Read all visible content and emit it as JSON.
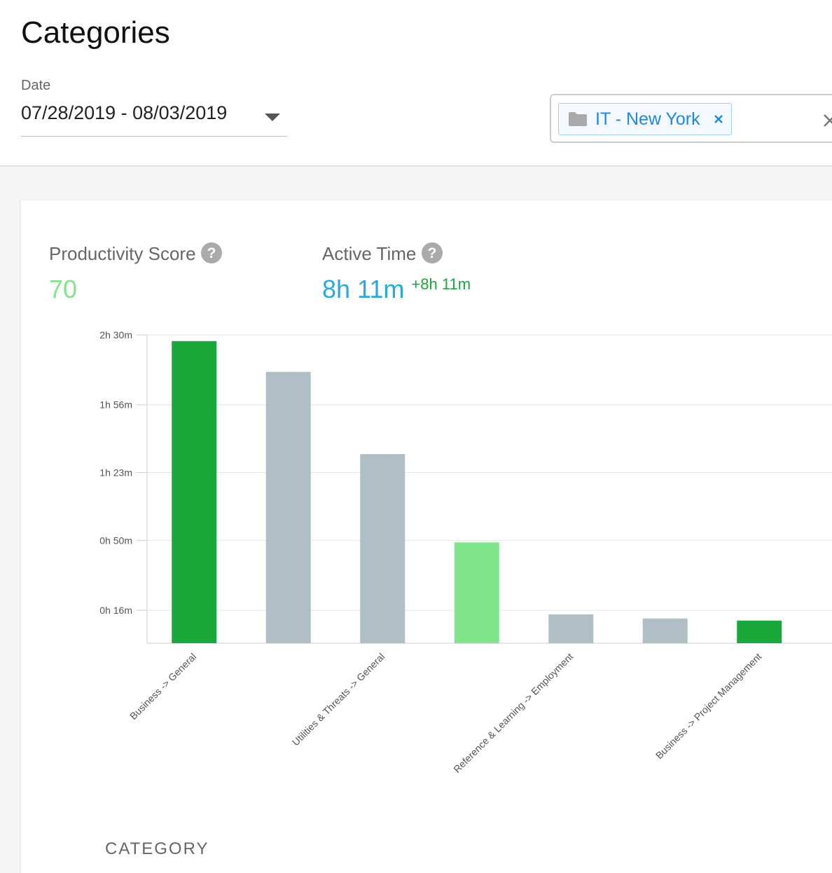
{
  "header": {
    "title": "Categories"
  },
  "filters": {
    "date_label": "Date",
    "date_range": "07/28/2019 - 08/03/2019",
    "group_tag": "IT - New York"
  },
  "stats": {
    "productivity_label": "Productivity Score",
    "productivity_value": 70,
    "active_label": "Active Time",
    "active_value": "8h 11m",
    "active_change": "+8h 11m"
  },
  "chart_data": {
    "type": "bar",
    "categories": [
      "Business -> General",
      null,
      "Utilities & Threats -> General",
      null,
      "Reference & Learning -> Employment",
      null,
      "Business -> Project Management"
    ],
    "values": [
      147,
      132,
      92,
      49,
      14,
      12,
      11
    ],
    "colors": [
      "#1aa83a",
      "#b0bec5",
      "#b0bec5",
      "#80e48a",
      "#b0bec5",
      "#b0bec5",
      "#1aa83a"
    ],
    "ylim": [
      0,
      150
    ],
    "yticks": [
      {
        "value": 16,
        "label": "0h 16m"
      },
      {
        "value": 50,
        "label": "0h 50m"
      },
      {
        "value": 83,
        "label": "1h 23m"
      },
      {
        "value": 116,
        "label": "1h 56m"
      },
      {
        "value": 150,
        "label": "2h 30m"
      }
    ],
    "grid": true
  },
  "table": {
    "header": "CATEGORY"
  }
}
